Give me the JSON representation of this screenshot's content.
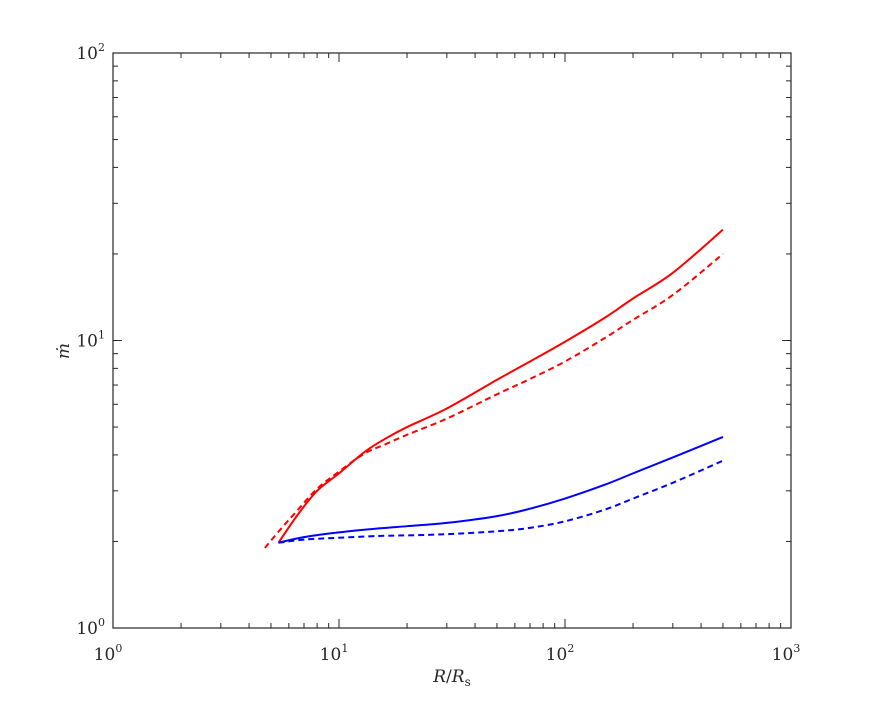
{
  "chart_data": {
    "type": "line",
    "title": "",
    "xlabel": "R/R_s",
    "ylabel": "ṁ",
    "xscale": "log",
    "yscale": "log",
    "xlim": [
      1,
      1000
    ],
    "ylim": [
      1,
      100
    ],
    "grid": false,
    "legend": "none",
    "x_ticks": [
      1,
      10,
      100,
      1000
    ],
    "y_ticks": [
      1,
      10,
      100
    ],
    "x_tick_labels": [
      {
        "base": "10",
        "exp": "0"
      },
      {
        "base": "10",
        "exp": "1"
      },
      {
        "base": "10",
        "exp": "2"
      },
      {
        "base": "10",
        "exp": "3"
      }
    ],
    "y_tick_labels": [
      {
        "base": "10",
        "exp": "0"
      },
      {
        "base": "10",
        "exp": "1"
      },
      {
        "base": "10",
        "exp": "2"
      }
    ],
    "series": [
      {
        "color": "#ff0000",
        "style": "solid",
        "x": [
          5.4,
          6.5,
          8,
          10,
          13,
          16,
          20,
          30,
          50,
          70,
          100,
          150,
          200,
          300,
          500
        ],
        "y": [
          1.98,
          2.45,
          3.0,
          3.45,
          4.1,
          4.55,
          5.0,
          5.8,
          7.3,
          8.45,
          9.9,
          12.0,
          14.0,
          17.2,
          24.3
        ]
      },
      {
        "color": "#ff0000",
        "style": "dashed",
        "x": [
          4.7,
          5.5,
          6.5,
          8,
          10,
          13,
          16,
          20,
          30,
          50,
          70,
          100,
          150,
          200,
          300,
          500
        ],
        "y": [
          1.9,
          2.2,
          2.55,
          3.05,
          3.5,
          4.05,
          4.35,
          4.7,
          5.35,
          6.5,
          7.35,
          8.45,
          10.2,
          11.8,
          14.4,
          20.0
        ]
      },
      {
        "color": "#0000ff",
        "style": "solid",
        "x": [
          5.4,
          7,
          10,
          15,
          20,
          30,
          50,
          70,
          100,
          150,
          200,
          300,
          500
        ],
        "y": [
          1.98,
          2.07,
          2.15,
          2.22,
          2.26,
          2.32,
          2.45,
          2.6,
          2.82,
          3.15,
          3.45,
          3.92,
          4.62
        ]
      },
      {
        "color": "#0000ff",
        "style": "dashed",
        "x": [
          5.4,
          7,
          10,
          15,
          20,
          30,
          50,
          70,
          100,
          150,
          200,
          300,
          500
        ],
        "y": [
          1.98,
          2.03,
          2.06,
          2.09,
          2.1,
          2.12,
          2.17,
          2.23,
          2.35,
          2.58,
          2.82,
          3.2,
          3.82
        ]
      }
    ]
  }
}
